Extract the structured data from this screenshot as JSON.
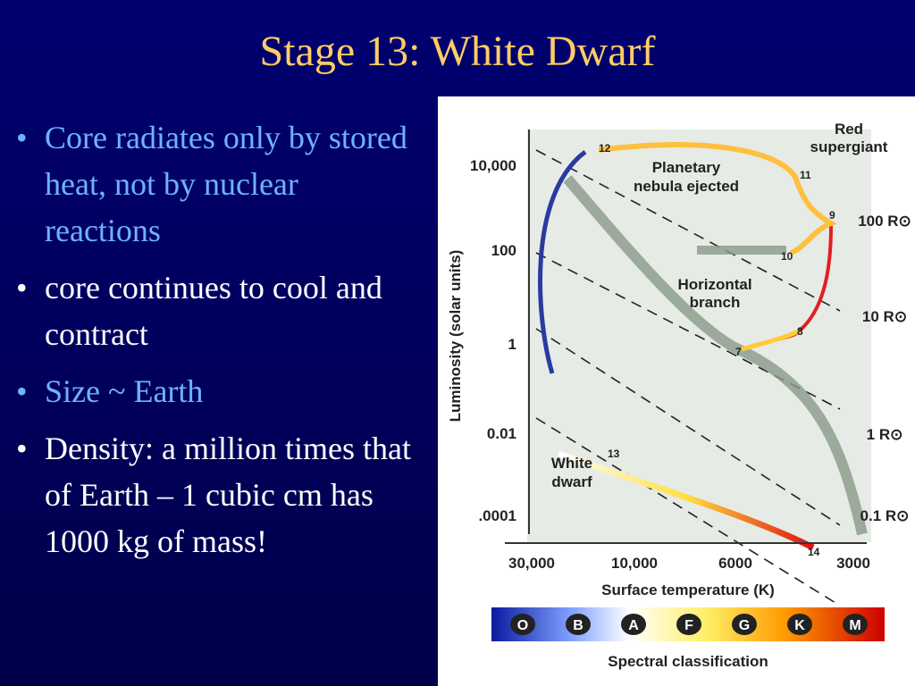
{
  "slide": {
    "title": "Stage 13: White Dwarf",
    "bullets": [
      "Core radiates only by stored heat, not by nuclear reactions",
      "core continues to cool and contract",
      "Size ~ Earth",
      "Density: a million times that of Earth – 1 cubic cm has 1000 kg of mass!"
    ]
  },
  "figure": {
    "y_axis_label": "Luminosity (solar units)",
    "y_ticks": [
      "10,000",
      "100",
      "1",
      "0.01",
      ".0001"
    ],
    "x_ticks": [
      "30,000",
      "10,000",
      "6000",
      "3000"
    ],
    "x_axis_label": "Surface temperature (K)",
    "spectral_classes": [
      "O",
      "B",
      "A",
      "F",
      "G",
      "K",
      "M"
    ],
    "spectral_label": "Spectral classification",
    "annotations": {
      "red_supergiant": [
        "Red",
        "supergiant"
      ],
      "planetary_nebula": [
        "Planetary",
        "nebula ejected"
      ],
      "horizontal_branch": [
        "Horizontal",
        "branch"
      ],
      "white_dwarf": [
        "White",
        "dwarf"
      ]
    },
    "radius_lines": [
      "100 R⊙",
      "10 R⊙",
      "1 R⊙",
      "0.1 R⊙"
    ],
    "stage_numbers": [
      "7",
      "8",
      "9",
      "10",
      "11",
      "12",
      "13",
      "14"
    ]
  }
}
